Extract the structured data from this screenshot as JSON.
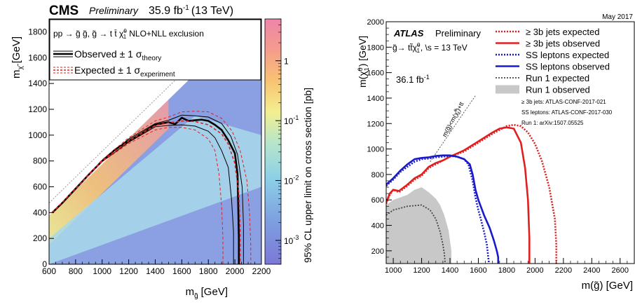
{
  "chart_data": [
    {
      "type": "heatmap",
      "experiment": "CMS",
      "status": "Preliminary",
      "lumi_text": "35.9 fb",
      "lumi_unit_sup": "-1",
      "energy": "(13 TeV)",
      "process_text": "pp → g̃ g̃, g̃ → t t̄ χ̃",
      "process_sup": "0",
      "process_sub": "1",
      "process_suffix": "NLO+NLL exclusion",
      "legend": [
        {
          "label": "Observed ± 1 σ",
          "sub": "theory",
          "color": "#000000",
          "style": "solid"
        },
        {
          "label": "Expected ± 1 σ",
          "sub": "experiment",
          "color": "#dd2222",
          "style": "dashed"
        }
      ],
      "xlabel": "m",
      "xlabel_sub": "g̃",
      "xlabel_unit": "[GeV]",
      "ylabel": "m",
      "ylabel_sub": "χ̃",
      "ylabel_unit": "[GeV]",
      "zlabel": "95% CL upper limit on cross section [pb]",
      "xlim": [
        600,
        2200
      ],
      "ylim": [
        0,
        1900
      ],
      "xticks": [
        600,
        800,
        1000,
        1200,
        1400,
        1600,
        1800,
        2000,
        2200
      ],
      "yticks": [
        0,
        200,
        400,
        600,
        800,
        1000,
        1200,
        1400,
        1600,
        1800
      ],
      "zticks": [
        {
          "base": "1",
          "exp": "",
          "value": 1
        },
        {
          "base": "10",
          "exp": "-1",
          "value": 0.1
        },
        {
          "base": "10",
          "exp": "-2",
          "value": 0.01
        },
        {
          "base": "10",
          "exp": "-3",
          "value": 0.001
        }
      ],
      "zlim": [
        0.0004,
        5
      ],
      "series": [
        {
          "name": "Observed",
          "color": "#000000",
          "dash": false,
          "width": 2.6,
          "x": [
            625,
            700,
            800,
            900,
            1000,
            1100,
            1200,
            1300,
            1400,
            1450,
            1500,
            1550,
            1600,
            1650,
            1700,
            1750,
            1800,
            1850,
            1900,
            1950,
            2000,
            2020,
            2025,
            2030,
            2030
          ],
          "y": [
            400,
            475,
            585,
            695,
            800,
            890,
            955,
            1015,
            1080,
            1090,
            1100,
            1085,
            1135,
            1110,
            1115,
            1120,
            1110,
            1080,
            1040,
            960,
            860,
            700,
            450,
            200,
            0
          ]
        },
        {
          "name": "Observed +1σ",
          "color": "#000000",
          "dash": false,
          "width": 1,
          "x": [
            625,
            800,
            1000,
            1200,
            1400,
            1500,
            1600,
            1700,
            1800,
            1900,
            1970,
            2020,
            2055,
            2065,
            2065
          ],
          "y": [
            400,
            585,
            805,
            970,
            1090,
            1115,
            1155,
            1150,
            1140,
            1090,
            990,
            850,
            600,
            300,
            0
          ]
        },
        {
          "name": "Observed -1σ",
          "color": "#000000",
          "dash": false,
          "width": 1,
          "x": [
            625,
            800,
            1000,
            1200,
            1400,
            1500,
            1600,
            1700,
            1800,
            1850,
            1900,
            1950,
            1975,
            1990,
            1990
          ],
          "y": [
            400,
            585,
            795,
            945,
            1065,
            1075,
            1080,
            1070,
            1030,
            980,
            880,
            750,
            500,
            250,
            0
          ]
        },
        {
          "name": "Expected",
          "color": "#dd2222",
          "dash": true,
          "width": 1.6,
          "x": [
            625,
            800,
            1000,
            1200,
            1400,
            1500,
            1600,
            1700,
            1800,
            1900,
            1950,
            2000,
            2030,
            2040,
            2040
          ],
          "y": [
            400,
            585,
            800,
            955,
            1075,
            1095,
            1110,
            1105,
            1080,
            1010,
            930,
            780,
            550,
            250,
            0
          ]
        },
        {
          "name": "Expected +1σ",
          "color": "#dd2222",
          "dash": true,
          "width": 1,
          "x": [
            625,
            800,
            1000,
            1200,
            1400,
            1500,
            1600,
            1700,
            1800,
            1900,
            1980,
            2040,
            2090,
            2110,
            2120,
            2120
          ],
          "y": [
            400,
            585,
            810,
            980,
            1110,
            1140,
            1180,
            1185,
            1180,
            1130,
            1030,
            880,
            650,
            400,
            150,
            0
          ]
        },
        {
          "name": "Expected -1σ",
          "color": "#dd2222",
          "dash": true,
          "width": 1,
          "x": [
            625,
            800,
            1000,
            1200,
            1400,
            1500,
            1600,
            1700,
            1800,
            1850,
            1880,
            1900,
            1910,
            1910
          ],
          "y": [
            400,
            585,
            795,
            935,
            1040,
            1060,
            1060,
            1040,
            970,
            880,
            700,
            450,
            200,
            0
          ]
        }
      ]
    },
    {
      "type": "line",
      "date": "May 2017",
      "experiment": "ATLAS",
      "status": "Preliminary",
      "process_text": "g̃→ tt̃χ̃",
      "process_sup": "0",
      "process_sub": "1",
      "process_energy": ", \\s = 13 TeV",
      "lumi_text": "36.1 fb",
      "lumi_unit_sup": "-1",
      "diag_label": "m(g̃)<m(χ̃",
      "diag_label_sup": "0",
      "diag_label_sub": "1",
      "diag_label_suffix": ")+tt",
      "references": [
        "≥ 3b jets: ATLAS-CONF-2017-021",
        "SS leptons: ATLAS-CONF-2017-030",
        "Run 1: arXiv:1507.05525"
      ],
      "xlabel": "m(g̃) [GeV]",
      "ylabel": "m(χ̃",
      "ylabel_sup": "0",
      "ylabel_sub": "1",
      "ylabel_suffix": ") [GeV]",
      "xlim": [
        950,
        2700
      ],
      "ylim": [
        100,
        2000
      ],
      "xticks": [
        1000,
        1200,
        1400,
        1600,
        1800,
        2000,
        2200,
        2400,
        2600
      ],
      "yticks": [
        200,
        400,
        600,
        800,
        1000,
        1200,
        1400,
        1600,
        1800,
        2000
      ],
      "series": [
        {
          "name": "≥ 3b jets expected",
          "color": "#e02020",
          "dash": "dot",
          "width": 2.6,
          "x": [
            950,
            975,
            1000,
            1040,
            1100,
            1150,
            1200,
            1250,
            1300,
            1350,
            1400,
            1500,
            1600,
            1700,
            1800,
            1850,
            1900,
            1950,
            2000,
            2050,
            2100,
            2140,
            2150,
            2150
          ],
          "y": [
            570,
            640,
            680,
            660,
            710,
            760,
            790,
            850,
            880,
            910,
            940,
            980,
            1050,
            1120,
            1180,
            1190,
            1180,
            1130,
            1040,
            900,
            700,
            450,
            250,
            100
          ]
        },
        {
          "name": "≥ 3b jets observed",
          "color": "#e02020",
          "dash": "solid",
          "width": 2.6,
          "x": [
            950,
            975,
            1000,
            1040,
            1100,
            1150,
            1200,
            1250,
            1300,
            1350,
            1400,
            1500,
            1600,
            1700,
            1750,
            1800,
            1850,
            1900,
            1930,
            1950,
            1960,
            1960
          ],
          "y": [
            580,
            650,
            680,
            670,
            720,
            770,
            800,
            860,
            890,
            910,
            940,
            990,
            1060,
            1130,
            1160,
            1170,
            1160,
            1050,
            850,
            600,
            300,
            100
          ]
        },
        {
          "name": "SS leptons expected",
          "color": "#1a1acc",
          "dash": "dot",
          "width": 2.6,
          "x": [
            950,
            1000,
            1050,
            1100,
            1150,
            1200,
            1250,
            1300,
            1350,
            1400,
            1450,
            1500,
            1530,
            1560,
            1580,
            1600,
            1620,
            1640,
            1660,
            1670,
            1675
          ],
          "y": [
            710,
            760,
            820,
            860,
            900,
            920,
            925,
            935,
            940,
            945,
            940,
            920,
            880,
            750,
            620,
            520,
            440,
            350,
            250,
            150,
            100
          ]
        },
        {
          "name": "SS leptons observed",
          "color": "#1a1acc",
          "dash": "solid",
          "width": 2.6,
          "x": [
            950,
            1000,
            1050,
            1100,
            1150,
            1200,
            1250,
            1300,
            1350,
            1400,
            1450,
            1500,
            1540,
            1560,
            1580,
            1600,
            1640,
            1680,
            1710,
            1730,
            1740,
            1740
          ],
          "y": [
            720,
            770,
            830,
            880,
            920,
            930,
            935,
            945,
            950,
            950,
            940,
            920,
            880,
            800,
            680,
            600,
            480,
            380,
            280,
            200,
            150,
            100
          ]
        },
        {
          "name": "Run 1 expected",
          "color": "#444444",
          "dash": "dot",
          "width": 1.8,
          "x": [
            950,
            1000,
            1100,
            1200,
            1260,
            1300,
            1330,
            1350,
            1360,
            1365,
            1365
          ],
          "y": [
            480,
            520,
            550,
            560,
            520,
            450,
            350,
            250,
            180,
            120,
            100
          ]
        },
        {
          "name": "Run 1 observed",
          "color": "#c8c8c8",
          "dash": "fill",
          "width": 0,
          "x": [
            950,
            1000,
            1050,
            1100,
            1150,
            1200,
            1250,
            1300,
            1330,
            1360,
            1390,
            1400,
            1410,
            1410,
            950
          ],
          "y": [
            560,
            600,
            620,
            640,
            680,
            700,
            660,
            610,
            560,
            480,
            360,
            280,
            200,
            100,
            100
          ]
        }
      ]
    }
  ]
}
